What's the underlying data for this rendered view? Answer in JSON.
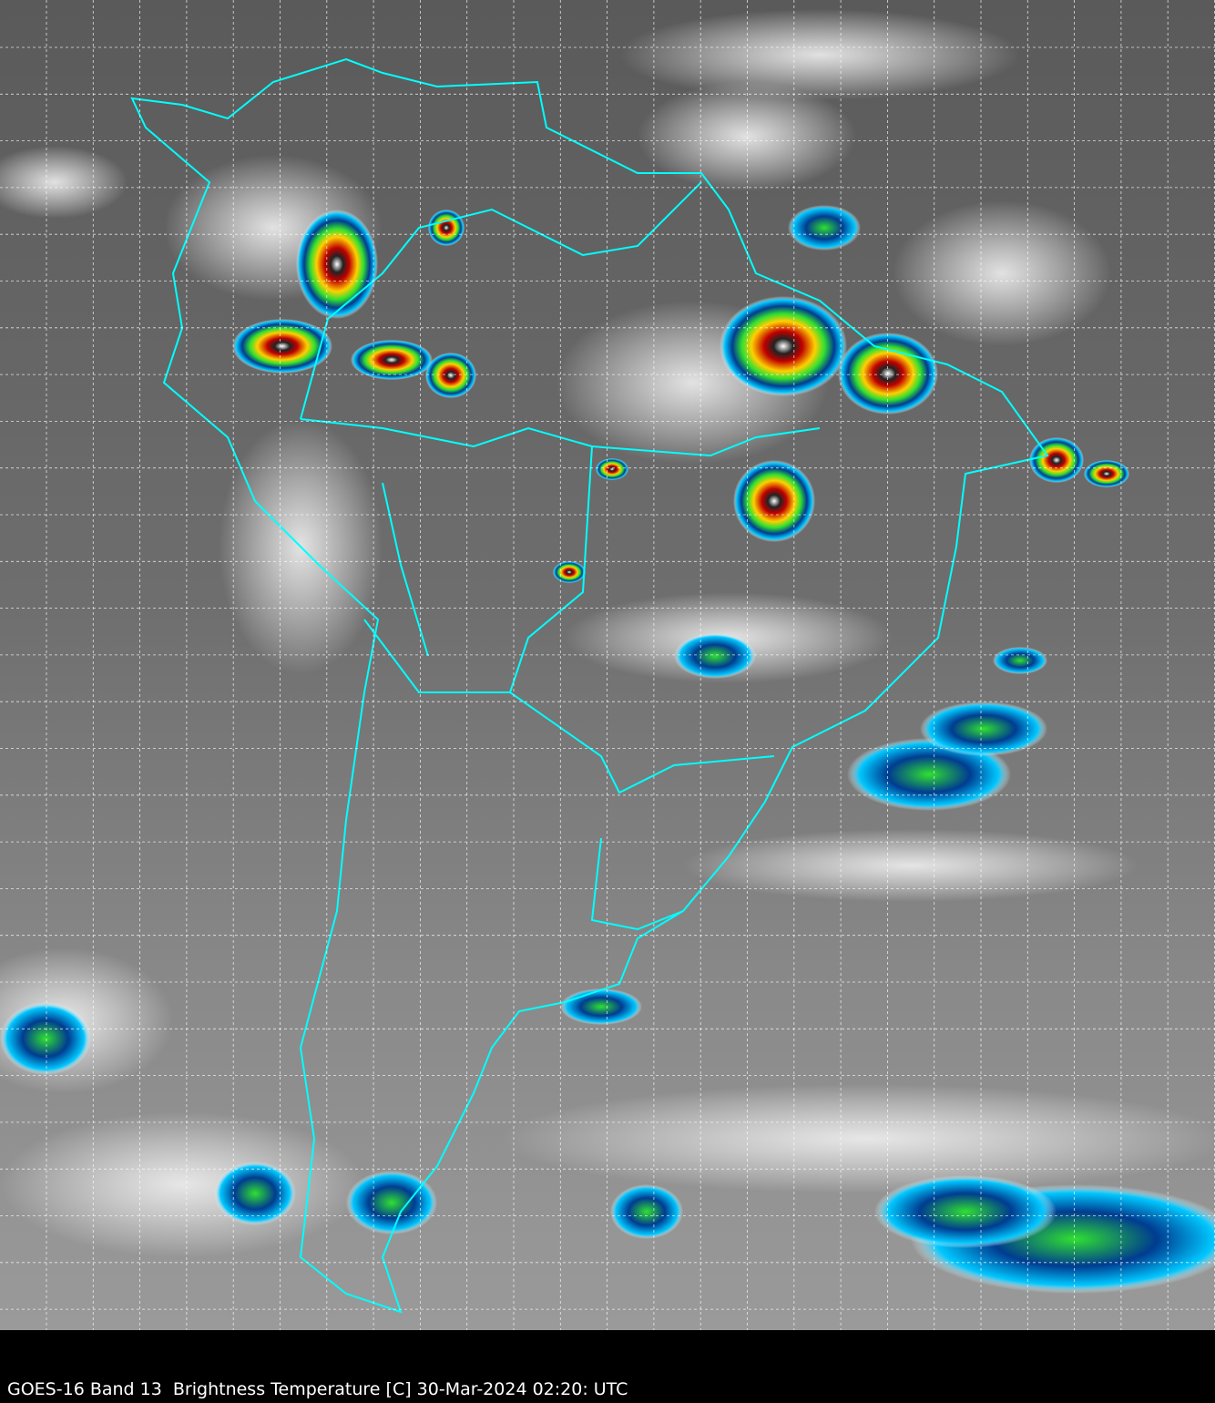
{
  "caption": "GOES-16 Band 13  Brightness Temperature [C] 30-Mar-2024 02:20: UTC",
  "colors": {
    "border": "#00ffff",
    "grid": "#ffffff",
    "background": "#000000"
  },
  "grid": {
    "style": "dashed",
    "visible": true
  }
}
